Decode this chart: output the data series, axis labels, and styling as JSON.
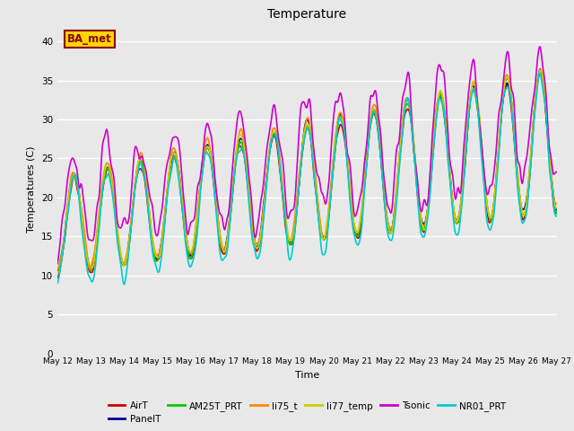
{
  "title": "Temperature",
  "ylabel": "Temperatures (C)",
  "xlabel": "Time",
  "ylim": [
    0,
    42
  ],
  "yticks": [
    0,
    5,
    10,
    15,
    20,
    25,
    30,
    35,
    40
  ],
  "plot_bg": "#e8e8e8",
  "fig_bg": "#e8e8e8",
  "annotation_text": "BA_met",
  "annotation_color": "#8B0000",
  "annotation_bg": "#FFD700",
  "series": {
    "AirT": {
      "color": "#cc0000",
      "lw": 1.2
    },
    "PanelT": {
      "color": "#000099",
      "lw": 1.2
    },
    "AM25T_PRT": {
      "color": "#00cc00",
      "lw": 1.2
    },
    "li75_t": {
      "color": "#ff8800",
      "lw": 1.2
    },
    "li77_temp": {
      "color": "#cccc00",
      "lw": 1.2
    },
    "Tsonic": {
      "color": "#cc00cc",
      "lw": 1.2
    },
    "NR01_PRT": {
      "color": "#00cccc",
      "lw": 1.2
    }
  },
  "xtick_days": [
    12,
    13,
    14,
    15,
    16,
    17,
    18,
    19,
    20,
    21,
    22,
    23,
    24,
    25,
    26,
    27
  ]
}
